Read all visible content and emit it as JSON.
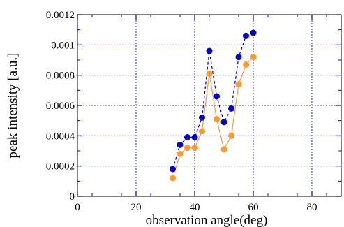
{
  "chart_data": {
    "type": "line",
    "xlabel": "observation angle(deg)",
    "ylabel": "peak intensity [a.u.]",
    "xlim": [
      0,
      90
    ],
    "ylim": [
      0,
      0.0012
    ],
    "xticks": [
      0,
      20,
      40,
      60,
      80
    ],
    "xtick_labels": [
      "0",
      "20",
      "40",
      "60",
      "80"
    ],
    "yticks": [
      0,
      0.0002,
      0.0004,
      0.0006,
      0.0008,
      0.001,
      0.0012
    ],
    "ytick_labels": [
      "0",
      "0.0002",
      "0.0004",
      "0.0006",
      "0.0008",
      "0.001",
      "0.0012"
    ],
    "grid": true,
    "series": [
      {
        "color": "#0000cc",
        "line_style": "dashed",
        "marker": "circle",
        "x": [
          32.5,
          35,
          37.5,
          40,
          42.5,
          45,
          47.5,
          50,
          52.5,
          55,
          57.5,
          60
        ],
        "y": [
          0.00018,
          0.00034,
          0.00039,
          0.00039,
          0.00052,
          0.00096,
          0.00066,
          0.00049,
          0.00058,
          0.00092,
          0.00106,
          0.00108
        ]
      },
      {
        "color": "#ff9933",
        "line_style": "solid",
        "marker": "circle",
        "x": [
          32.5,
          35,
          37.5,
          40,
          42.5,
          45,
          47.5,
          50,
          52.5,
          55,
          57.5,
          60
        ],
        "y": [
          0.00012,
          0.00028,
          0.00032,
          0.00032,
          0.00043,
          0.00081,
          0.00051,
          0.00031,
          0.0004,
          0.00074,
          0.00087,
          0.00092
        ]
      }
    ]
  }
}
